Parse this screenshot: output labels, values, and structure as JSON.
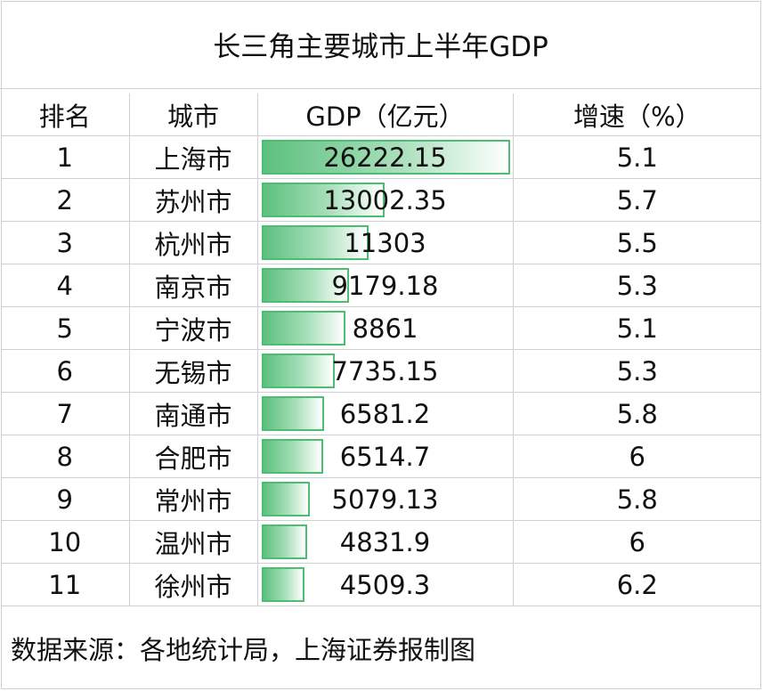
{
  "title": "长三角主要城市上半年GDP",
  "headers": [
    "排名",
    "城市",
    "GDP（亿元）",
    "增速（%）"
  ],
  "source": "数据来源：各地统计局，上海证券报制图",
  "colors": {
    "bar_fill": "#5dc07f",
    "bar_border": "#4dbd72",
    "grid": "#cfcfcf"
  },
  "chart_data": {
    "type": "table",
    "title": "长三角主要城市上半年GDP",
    "columns": [
      "排名",
      "城市",
      "GDP（亿元）",
      "增速（%）"
    ],
    "rows": [
      {
        "rank": "1",
        "city": "上海市",
        "gdp": "26222.15",
        "growth": "5.1",
        "gdp_value": 26222.15
      },
      {
        "rank": "2",
        "city": "苏州市",
        "gdp": "13002.35",
        "growth": "5.7",
        "gdp_value": 13002.35
      },
      {
        "rank": "3",
        "city": "杭州市",
        "gdp": "11303",
        "growth": "5.5",
        "gdp_value": 11303
      },
      {
        "rank": "4",
        "city": "南京市",
        "gdp": "9179.18",
        "growth": "5.3",
        "gdp_value": 9179.18
      },
      {
        "rank": "5",
        "city": "宁波市",
        "gdp": "8861",
        "growth": "5.1",
        "gdp_value": 8861
      },
      {
        "rank": "6",
        "city": "无锡市",
        "gdp": "7735.15",
        "growth": "5.3",
        "gdp_value": 7735.15
      },
      {
        "rank": "7",
        "city": "南通市",
        "gdp": "6581.2",
        "growth": "5.8",
        "gdp_value": 6581.2
      },
      {
        "rank": "8",
        "city": "合肥市",
        "gdp": "6514.7",
        "growth": "6",
        "gdp_value": 6514.7
      },
      {
        "rank": "9",
        "city": "常州市",
        "gdp": "5079.13",
        "growth": "5.8",
        "gdp_value": 5079.13
      },
      {
        "rank": "10",
        "city": "温州市",
        "gdp": "4831.9",
        "growth": "6",
        "gdp_value": 4831.9
      },
      {
        "rank": "11",
        "city": "徐州市",
        "gdp": "4509.3",
        "growth": "6.2",
        "gdp_value": 4509.3
      }
    ]
  }
}
